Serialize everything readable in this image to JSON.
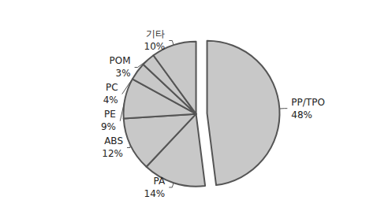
{
  "chart_data": {
    "type": "pie",
    "categories": [
      "PP/TPO",
      "PA",
      "ABS",
      "PE",
      "PC",
      "POM",
      "기타"
    ],
    "values": [
      48,
      14,
      12,
      9,
      4,
      3,
      10
    ],
    "value_labels": [
      "48%",
      "14%",
      "12%",
      "9%",
      "4%",
      "3%",
      "10%"
    ],
    "color": "#c8c8c8",
    "data_labels": true
  }
}
